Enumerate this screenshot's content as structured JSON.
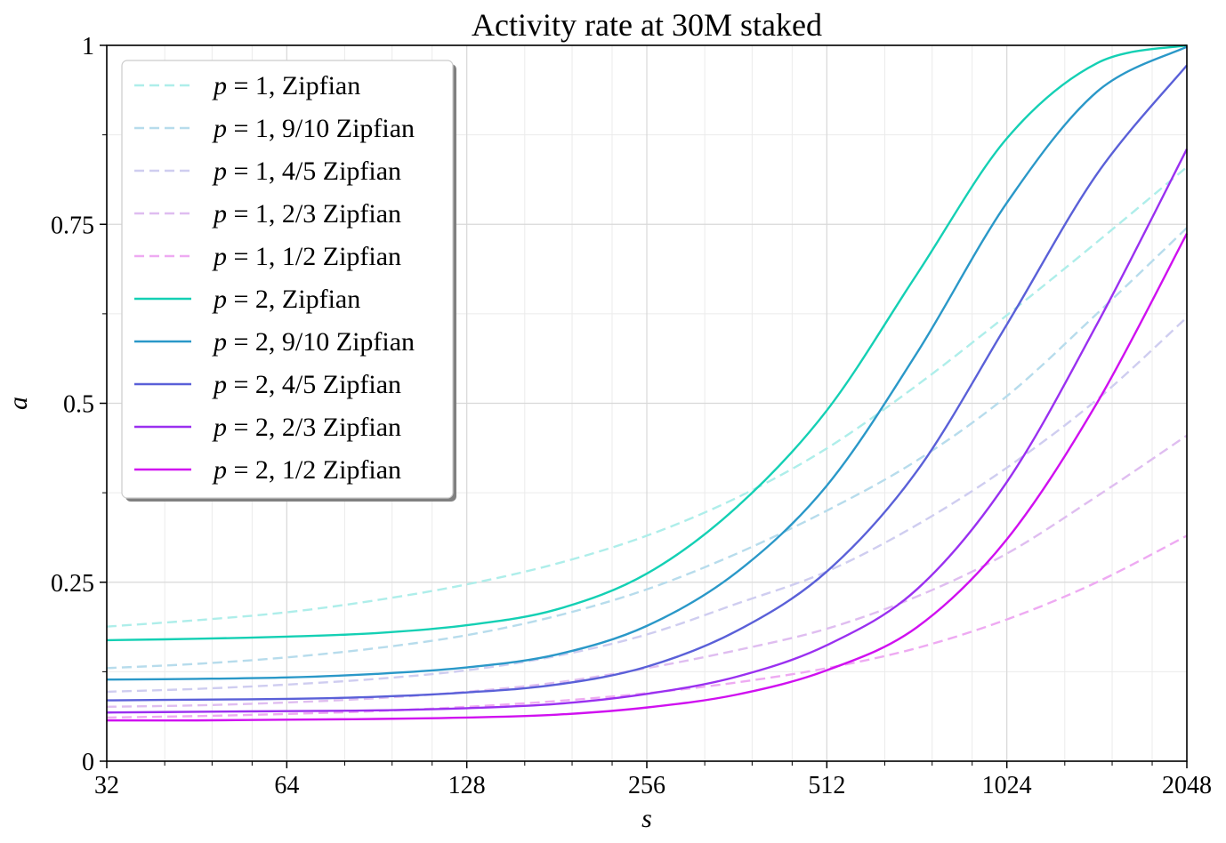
{
  "chart_data": {
    "type": "line",
    "title": "Activity rate at 30M staked",
    "xlabel": "s",
    "ylabel": "a",
    "x_scale": "log2",
    "xlim": [
      32,
      2048
    ],
    "ylim": [
      0,
      1
    ],
    "x_ticks": [
      32,
      64,
      128,
      256,
      512,
      1024,
      2048
    ],
    "x_tick_labels": [
      "32",
      "64",
      "128",
      "256",
      "512",
      "1024",
      "2048"
    ],
    "y_ticks": [
      0,
      0.25,
      0.5,
      0.75,
      1
    ],
    "y_tick_labels": [
      "0",
      "0.25",
      "0.5",
      "0.75",
      "1"
    ],
    "grid": true,
    "legend_position": "top-left",
    "series": [
      {
        "p": "1",
        "label": "Zipfian",
        "color": "#aeeeea",
        "style": "dashed",
        "x": [
          32,
          45.3,
          64,
          90.5,
          128,
          181,
          256,
          362,
          512,
          724,
          1024,
          1448,
          2048
        ],
        "y": [
          0.188,
          0.197,
          0.208,
          0.225,
          0.247,
          0.276,
          0.315,
          0.368,
          0.437,
          0.525,
          0.623,
          0.725,
          0.83
        ]
      },
      {
        "p": "1",
        "label": "9/10 Zipfian",
        "color": "#b7dcec",
        "style": "dashed",
        "x": [
          32,
          45.3,
          64,
          90.5,
          128,
          181,
          256,
          362,
          512,
          724,
          1024,
          1448,
          2048
        ],
        "y": [
          0.13,
          0.136,
          0.145,
          0.158,
          0.176,
          0.203,
          0.24,
          0.29,
          0.35,
          0.42,
          0.51,
          0.625,
          0.745
        ]
      },
      {
        "p": "1",
        "label": "4/5 Zipfian",
        "color": "#cfcdf0",
        "style": "dashed",
        "x": [
          32,
          45.3,
          64,
          90.5,
          128,
          181,
          256,
          362,
          512,
          724,
          1024,
          1448,
          2048
        ],
        "y": [
          0.097,
          0.101,
          0.107,
          0.115,
          0.127,
          0.147,
          0.177,
          0.22,
          0.265,
          0.33,
          0.41,
          0.505,
          0.62
        ]
      },
      {
        "p": "1",
        "label": "2/3 Zipfian",
        "color": "#dfbdf0",
        "style": "dashed",
        "x": [
          32,
          45.3,
          64,
          90.5,
          128,
          181,
          256,
          362,
          512,
          724,
          1024,
          1448,
          2048
        ],
        "y": [
          0.076,
          0.078,
          0.082,
          0.088,
          0.097,
          0.11,
          0.13,
          0.155,
          0.185,
          0.23,
          0.29,
          0.37,
          0.455
        ]
      },
      {
        "p": "1",
        "label": "1/2 Zipfian",
        "color": "#eeaaf2",
        "style": "dashed",
        "x": [
          32,
          45.3,
          64,
          90.5,
          128,
          181,
          256,
          362,
          512,
          724,
          1024,
          1448,
          2048
        ],
        "y": [
          0.061,
          0.063,
          0.066,
          0.07,
          0.076,
          0.084,
          0.095,
          0.11,
          0.13,
          0.158,
          0.198,
          0.25,
          0.315
        ]
      },
      {
        "p": "2",
        "label": "Zipfian",
        "color": "#14d0b4",
        "style": "solid",
        "x": [
          32,
          45.3,
          64,
          90.5,
          128,
          181,
          256,
          362,
          512,
          724,
          1024,
          1448,
          2048
        ],
        "y": [
          0.169,
          0.171,
          0.174,
          0.179,
          0.19,
          0.212,
          0.262,
          0.355,
          0.49,
          0.68,
          0.87,
          0.975,
          1.0
        ]
      },
      {
        "p": "2",
        "label": "9/10 Zipfian",
        "color": "#2a98c8",
        "style": "solid",
        "x": [
          32,
          45.3,
          64,
          90.5,
          128,
          181,
          256,
          362,
          512,
          724,
          1024,
          1448,
          2048
        ],
        "y": [
          0.114,
          0.115,
          0.117,
          0.122,
          0.131,
          0.149,
          0.189,
          0.264,
          0.385,
          0.57,
          0.78,
          0.935,
          0.998
        ]
      },
      {
        "p": "2",
        "label": "4/5 Zipfian",
        "color": "#5a60d8",
        "style": "solid",
        "x": [
          32,
          45.3,
          64,
          90.5,
          128,
          181,
          256,
          362,
          512,
          724,
          1024,
          1448,
          2048
        ],
        "y": [
          0.085,
          0.086,
          0.087,
          0.09,
          0.096,
          0.107,
          0.132,
          0.182,
          0.265,
          0.405,
          0.61,
          0.82,
          0.972
        ]
      },
      {
        "p": "2",
        "label": "2/3 Zipfian",
        "color": "#9a30f0",
        "style": "solid",
        "x": [
          32,
          45.3,
          64,
          90.5,
          128,
          181,
          256,
          362,
          512,
          724,
          1024,
          1448,
          2048
        ],
        "y": [
          0.068,
          0.069,
          0.07,
          0.071,
          0.074,
          0.08,
          0.094,
          0.118,
          0.162,
          0.24,
          0.39,
          0.61,
          0.855
        ]
      },
      {
        "p": "2",
        "label": "1/2 Zipfian",
        "color": "#d010f0",
        "style": "solid",
        "x": [
          32,
          45.3,
          64,
          90.5,
          128,
          181,
          256,
          362,
          512,
          724,
          1024,
          1448,
          2048
        ],
        "y": [
          0.057,
          0.057,
          0.058,
          0.059,
          0.061,
          0.065,
          0.075,
          0.093,
          0.127,
          0.187,
          0.31,
          0.5,
          0.737
        ]
      }
    ]
  }
}
